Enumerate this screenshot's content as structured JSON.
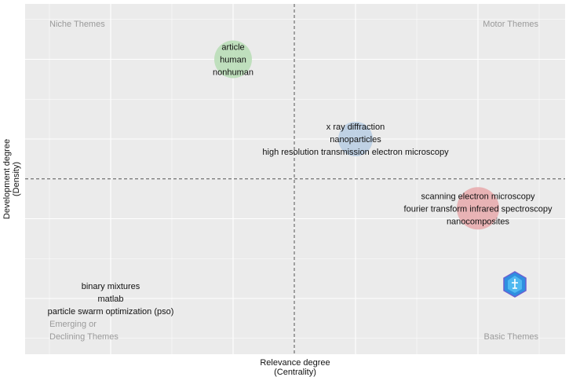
{
  "chart_data": {
    "type": "scatter",
    "title": "",
    "xlabel": [
      "Relevance degree",
      "(Centrality)"
    ],
    "ylabel": [
      "Development degree",
      "(Density)"
    ],
    "xlim": [
      0.2,
      4.6
    ],
    "ylim": [
      -0.2,
      4.5
    ],
    "x_threshold": 2.5,
    "y_threshold": 2.5,
    "grid": true,
    "quadrant_labels": {
      "top_left": [
        "Niche Themes"
      ],
      "top_right": [
        "Motor Themes"
      ],
      "bottom_left": [
        "Emerging or",
        "Declining Themes"
      ],
      "bottom_right": [
        "Basic Themes"
      ]
    },
    "clusters": [
      {
        "x": 2.0,
        "y": 4.0,
        "size": 24,
        "color": "#b7ddb5",
        "labels": [
          "article",
          "human",
          "nonhuman"
        ]
      },
      {
        "x": 3.0,
        "y": 3.0,
        "size": 22,
        "color": "#b7cce3",
        "labels": [
          "x ray diffraction",
          "nanoparticles",
          "high resolution transmission electron microscopy"
        ]
      },
      {
        "x": 4.0,
        "y": 2.13,
        "size": 27,
        "color": "#e8a9ab",
        "labels": [
          "scanning electron microscopy",
          "fourier transform infrared spectroscopy",
          "nanocomposites"
        ]
      },
      {
        "x": 1.0,
        "y": 1.0,
        "size": 0,
        "color": "#cccccc",
        "labels": [
          "binary mixtures",
          "matlab",
          "particle swarm optimization (pso)"
        ]
      }
    ],
    "colors": {
      "panel": "#ebebeb",
      "grid": "#ffffff",
      "logo": "#2f8fe0"
    }
  }
}
